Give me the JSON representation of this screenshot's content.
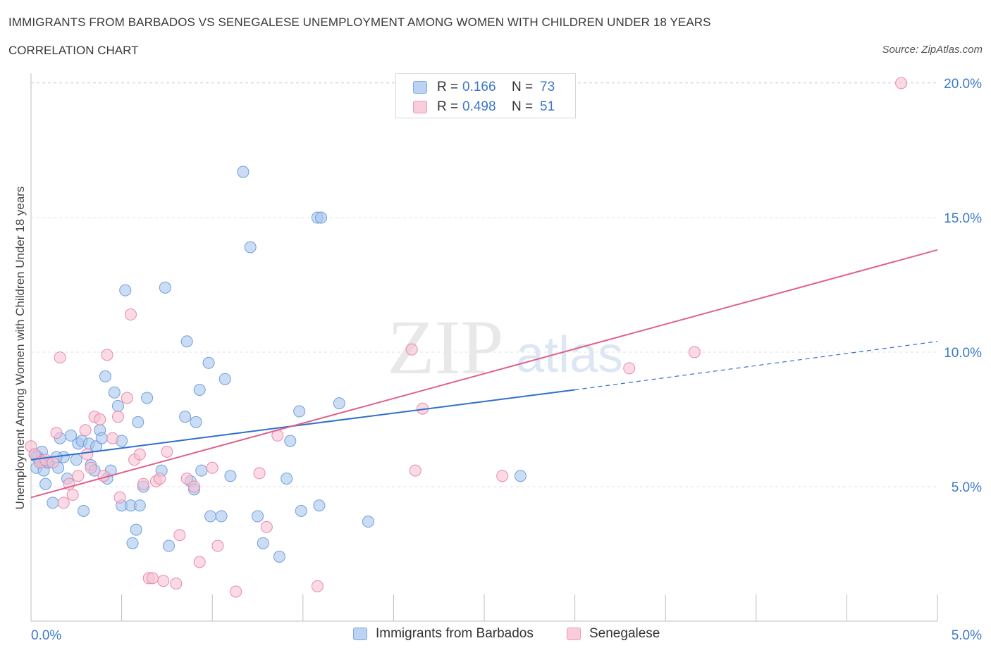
{
  "header": {
    "title": "IMMIGRANTS FROM BARBADOS VS SENEGALESE UNEMPLOYMENT AMONG WOMEN WITH CHILDREN UNDER 18 YEARS",
    "subtitle": "CORRELATION CHART",
    "source": "Source: ZipAtlas.com"
  },
  "watermark": {
    "zip": "ZIP",
    "atlas": "atlas"
  },
  "legend": {
    "rows": [
      {
        "r_label": "R =",
        "r_value": "0.166",
        "n_label": "N =",
        "n_value": "73",
        "color": "#a9c6ef"
      },
      {
        "r_label": "R =",
        "r_value": "0.498",
        "n_label": "N =",
        "n_value": "51",
        "color": "#f4b4c8"
      }
    ]
  },
  "bottom_legend": [
    {
      "label": "Immigrants from Barbados",
      "color": "#a9c6ef"
    },
    {
      "label": "Senegalese",
      "color": "#f4b4c8"
    }
  ],
  "colors": {
    "blue_fill": "#a9c6ef",
    "blue_stroke": "#6f9fdc",
    "blue_line": "#2f6fcc",
    "pink_fill": "#f6c2d2",
    "pink_stroke": "#e88aa8",
    "pink_line": "#e0608c",
    "tick_label": "#3b78c8"
  },
  "chart_data": {
    "type": "scatter",
    "title": "IMMIGRANTS FROM BARBADOS VS SENEGALESE UNEMPLOYMENT AMONG WOMEN WITH CHILDREN UNDER 18 YEARS",
    "xlabel": "",
    "ylabel": "Unemployment Among Women with Children Under 18 years",
    "xlim": [
      0,
      5
    ],
    "ylim": [
      0,
      20.5
    ],
    "x_tick_labels": [
      "0.0%",
      "5.0%"
    ],
    "y_ticks": [
      5,
      10,
      15,
      20
    ],
    "y_tick_labels": [
      "5.0%",
      "10.0%",
      "15.0%",
      "20.0%"
    ],
    "grid": true,
    "legend_position": "top-center",
    "series": [
      {
        "name": "Immigrants from Barbados",
        "r": 0.166,
        "n": 73,
        "trend": {
          "x0": 0,
          "y0": 6.0,
          "x1": 3.0,
          "y1": 8.6,
          "dashed_to_x": 5.0,
          "dashed_to_y": 10.4
        },
        "points": [
          [
            0.02,
            6.2
          ],
          [
            0.03,
            5.7
          ],
          [
            0.04,
            6.1
          ],
          [
            0.05,
            5.9
          ],
          [
            0.06,
            6.3
          ],
          [
            0.07,
            5.6
          ],
          [
            0.08,
            5.1
          ],
          [
            0.1,
            5.9
          ],
          [
            0.12,
            4.4
          ],
          [
            0.15,
            5.7
          ],
          [
            0.16,
            6.8
          ],
          [
            0.18,
            6.1
          ],
          [
            0.2,
            5.3
          ],
          [
            0.22,
            6.9
          ],
          [
            0.25,
            6.0
          ],
          [
            0.26,
            6.6
          ],
          [
            0.28,
            6.7
          ],
          [
            0.29,
            4.1
          ],
          [
            0.32,
            6.6
          ],
          [
            0.33,
            5.8
          ],
          [
            0.35,
            5.6
          ],
          [
            0.36,
            6.5
          ],
          [
            0.38,
            7.1
          ],
          [
            0.39,
            6.8
          ],
          [
            0.41,
            9.1
          ],
          [
            0.42,
            5.3
          ],
          [
            0.44,
            5.6
          ],
          [
            0.46,
            8.5
          ],
          [
            0.48,
            8.0
          ],
          [
            0.5,
            6.7
          ],
          [
            0.5,
            4.3
          ],
          [
            0.52,
            12.3
          ],
          [
            0.55,
            4.3
          ],
          [
            0.56,
            2.9
          ],
          [
            0.58,
            3.4
          ],
          [
            0.59,
            7.4
          ],
          [
            0.6,
            4.3
          ],
          [
            0.62,
            5.0
          ],
          [
            0.64,
            8.3
          ],
          [
            0.72,
            5.6
          ],
          [
            0.74,
            12.4
          ],
          [
            0.76,
            2.8
          ],
          [
            0.85,
            7.6
          ],
          [
            0.86,
            10.4
          ],
          [
            0.88,
            5.2
          ],
          [
            0.9,
            4.9
          ],
          [
            0.91,
            7.4
          ],
          [
            0.93,
            8.6
          ],
          [
            0.94,
            5.6
          ],
          [
            0.98,
            9.6
          ],
          [
            0.99,
            3.9
          ],
          [
            1.05,
            3.9
          ],
          [
            1.07,
            9.0
          ],
          [
            1.1,
            5.4
          ],
          [
            1.17,
            16.7
          ],
          [
            1.21,
            13.9
          ],
          [
            1.25,
            3.9
          ],
          [
            1.28,
            2.9
          ],
          [
            1.37,
            2.4
          ],
          [
            1.41,
            5.3
          ],
          [
            1.43,
            6.7
          ],
          [
            1.48,
            7.8
          ],
          [
            1.49,
            4.1
          ],
          [
            1.58,
            15.0
          ],
          [
            1.6,
            15.0
          ],
          [
            1.59,
            4.3
          ],
          [
            1.7,
            8.1
          ],
          [
            1.86,
            3.7
          ],
          [
            2.7,
            5.4
          ],
          [
            0.05,
            6.0
          ],
          [
            0.09,
            5.9
          ],
          [
            0.14,
            6.1
          ],
          [
            0.03,
            6.1
          ]
        ]
      },
      {
        "name": "Senegalese",
        "r": 0.498,
        "n": 51,
        "trend": {
          "x0": 0,
          "y0": 4.6,
          "x1": 5.0,
          "y1": 13.8
        },
        "points": [
          [
            0.0,
            6.5
          ],
          [
            0.02,
            6.2
          ],
          [
            0.05,
            5.9
          ],
          [
            0.08,
            6.0
          ],
          [
            0.12,
            5.9
          ],
          [
            0.14,
            7.0
          ],
          [
            0.16,
            9.8
          ],
          [
            0.18,
            4.4
          ],
          [
            0.21,
            5.1
          ],
          [
            0.23,
            4.7
          ],
          [
            0.26,
            5.4
          ],
          [
            0.3,
            7.1
          ],
          [
            0.31,
            6.2
          ],
          [
            0.33,
            5.7
          ],
          [
            0.35,
            7.6
          ],
          [
            0.38,
            7.5
          ],
          [
            0.4,
            5.4
          ],
          [
            0.42,
            9.9
          ],
          [
            0.45,
            6.8
          ],
          [
            0.48,
            7.6
          ],
          [
            0.49,
            4.6
          ],
          [
            0.53,
            8.3
          ],
          [
            0.55,
            11.4
          ],
          [
            0.57,
            6.0
          ],
          [
            0.6,
            6.2
          ],
          [
            0.62,
            5.1
          ],
          [
            0.65,
            1.6
          ],
          [
            0.67,
            1.6
          ],
          [
            0.69,
            5.2
          ],
          [
            0.71,
            5.3
          ],
          [
            0.73,
            1.5
          ],
          [
            0.75,
            6.3
          ],
          [
            0.8,
            1.4
          ],
          [
            0.82,
            3.2
          ],
          [
            0.86,
            5.3
          ],
          [
            0.9,
            5.0
          ],
          [
            0.93,
            2.2
          ],
          [
            1.0,
            5.7
          ],
          [
            1.03,
            2.8
          ],
          [
            1.13,
            1.1
          ],
          [
            1.26,
            5.5
          ],
          [
            1.3,
            3.5
          ],
          [
            1.36,
            6.9
          ],
          [
            1.58,
            1.3
          ],
          [
            2.1,
            10.1
          ],
          [
            2.12,
            5.6
          ],
          [
            2.16,
            7.9
          ],
          [
            2.6,
            5.4
          ],
          [
            3.3,
            9.4
          ],
          [
            3.66,
            10.0
          ],
          [
            4.8,
            20.0
          ]
        ]
      }
    ]
  }
}
